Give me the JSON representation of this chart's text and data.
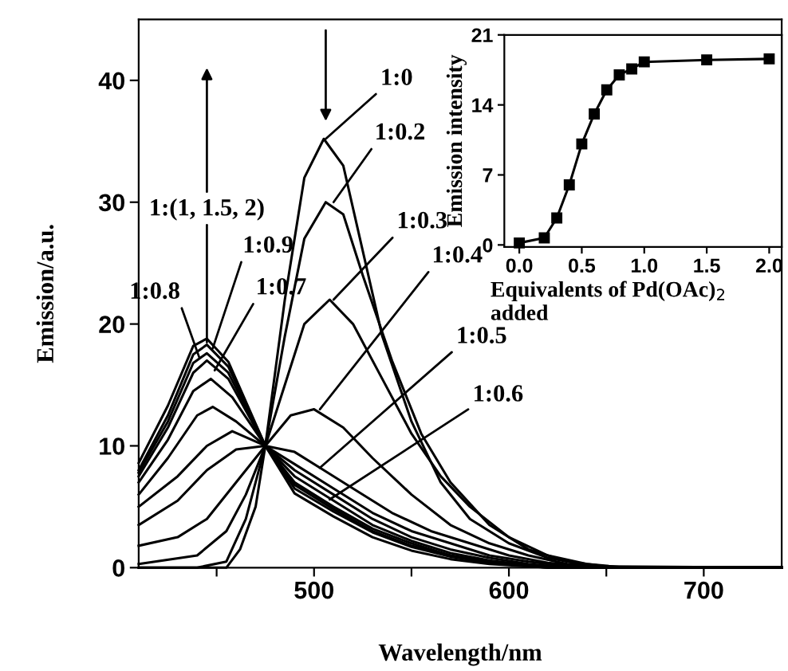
{
  "chart_data": [
    {
      "type": "line",
      "xlabel": "Wavelength/nm",
      "ylabel": "Emission/a.u.",
      "xlim": [
        410,
        740
      ],
      "ylim": [
        0,
        45
      ],
      "xticks": [
        {
          "value": 450,
          "label": null
        },
        500,
        {
          "value": 550,
          "label": null
        },
        600,
        {
          "value": 650,
          "label": null
        },
        700
      ],
      "yticks": [
        0,
        10,
        20,
        30,
        40
      ],
      "series": [
        {
          "color": "#000000",
          "x": [
            410,
            440,
            455,
            462,
            470,
            475,
            485,
            495,
            505,
            515,
            525,
            535,
            550,
            565,
            580,
            600,
            620,
            640,
            660,
            740
          ],
          "values": [
            0,
            0,
            0,
            1.5,
            5,
            10,
            22,
            32,
            35.2,
            33,
            26,
            19,
            12,
            7,
            4,
            2,
            0.8,
            0.2,
            0,
            0
          ]
        },
        {
          "color": "#000000",
          "x": [
            410,
            440,
            455,
            465,
            475,
            485,
            495,
            506,
            515,
            525,
            540,
            555,
            570,
            590,
            610,
            630,
            650,
            740
          ],
          "values": [
            0,
            0,
            0.5,
            4,
            10,
            19,
            27,
            30,
            29,
            24,
            17,
            11,
            7,
            3.5,
            1.5,
            0.5,
            0.1,
            0
          ]
        },
        {
          "color": "#000000",
          "x": [
            410,
            440,
            455,
            465,
            475,
            485,
            495,
            508,
            520,
            535,
            550,
            565,
            580,
            600,
            620,
            640,
            660,
            740
          ],
          "values": [
            0.3,
            1,
            3,
            6,
            10,
            15,
            20,
            22,
            20,
            15.5,
            11,
            7.5,
            5,
            2.5,
            1,
            0.3,
            0,
            0
          ]
        },
        {
          "color": "#000000",
          "x": [
            410,
            430,
            445,
            460,
            475,
            488,
            500,
            515,
            530,
            550,
            570,
            590,
            610,
            630,
            650,
            740
          ],
          "values": [
            1.8,
            2.5,
            4,
            7,
            10,
            12.5,
            13,
            11.5,
            9,
            6,
            3.5,
            2,
            1,
            0.3,
            0,
            0
          ]
        },
        {
          "color": "#000000",
          "x": [
            410,
            430,
            445,
            460,
            475,
            490,
            505,
            520,
            540,
            560,
            580,
            600,
            620,
            640,
            660,
            740
          ],
          "values": [
            3.5,
            5.5,
            8,
            9.7,
            10,
            9.5,
            8,
            6.5,
            4.5,
            3,
            2,
            1,
            0.4,
            0.1,
            0,
            0
          ]
        },
        {
          "color": "#000000",
          "x": [
            410,
            430,
            445,
            458,
            475,
            490,
            510,
            530,
            550,
            570,
            590,
            610,
            630,
            650,
            740
          ],
          "values": [
            5,
            7.5,
            10,
            11.2,
            10,
            8.5,
            6.5,
            4.5,
            3,
            2,
            1,
            0.5,
            0.1,
            0,
            0
          ]
        },
        {
          "color": "#000000",
          "x": [
            410,
            425,
            440,
            448,
            460,
            475,
            490,
            510,
            530,
            550,
            570,
            590,
            610,
            630,
            740
          ],
          "values": [
            6,
            9,
            12.5,
            13.2,
            12,
            10,
            8,
            6,
            4,
            2.5,
            1.5,
            0.8,
            0.3,
            0,
            0
          ]
        },
        {
          "color": "#000000",
          "x": [
            410,
            425,
            438,
            447,
            458,
            475,
            490,
            510,
            530,
            550,
            570,
            590,
            610,
            630,
            740
          ],
          "values": [
            7,
            10.5,
            14.5,
            15.5,
            14,
            10,
            7.5,
            5.5,
            3.5,
            2.2,
            1.2,
            0.6,
            0.2,
            0,
            0
          ]
        },
        {
          "color": "#000000",
          "x": [
            410,
            425,
            438,
            445,
            456,
            475,
            490,
            510,
            530,
            550,
            570,
            590,
            610,
            630,
            740
          ],
          "values": [
            7.5,
            11.5,
            16,
            17,
            15.5,
            10,
            7,
            5,
            3.2,
            2,
            1,
            0.5,
            0.2,
            0,
            0
          ]
        },
        {
          "color": "#000000",
          "x": [
            410,
            425,
            438,
            445,
            456,
            475,
            490,
            510,
            530,
            550,
            570,
            590,
            620,
            740
          ],
          "values": [
            7.8,
            12,
            16.8,
            17.6,
            16,
            10,
            6.8,
            4.8,
            3,
            1.8,
            1,
            0.4,
            0,
            0
          ]
        },
        {
          "color": "#000000",
          "x": [
            410,
            425,
            438,
            445,
            456,
            475,
            490,
            510,
            530,
            550,
            570,
            590,
            620,
            740
          ],
          "values": [
            8,
            12.5,
            17.5,
            18.3,
            16.5,
            10,
            6.5,
            4.6,
            2.9,
            1.7,
            0.9,
            0.4,
            0,
            0
          ]
        },
        {
          "color": "#000000",
          "x": [
            410,
            425,
            438,
            445,
            456,
            475,
            490,
            510,
            530,
            550,
            570,
            590,
            620,
            740
          ],
          "values": [
            8.6,
            13.3,
            18.2,
            18.8,
            16.9,
            10,
            6.1,
            4.2,
            2.5,
            1.4,
            0.7,
            0.3,
            0,
            0
          ]
        }
      ],
      "annotations": [
        {
          "text": "1:0",
          "x": 506,
          "y": 35.2
        },
        {
          "text": "1:0.2",
          "x": 510,
          "y": 30
        },
        {
          "text": "1:0.3",
          "x": 510,
          "y": 22
        },
        {
          "text": "1:0.4",
          "x": 503,
          "y": 13
        },
        {
          "text": "1:0.5",
          "x": 503,
          "y": 8.2
        },
        {
          "text": "1:0.6",
          "x": 508,
          "y": 5.6
        },
        {
          "text": "1:(1, 1.5, 2)",
          "x": 445,
          "y": 18.5
        },
        {
          "text": "1:0.9",
          "x": 448,
          "y": 18
        },
        {
          "text": "1:0.8",
          "x": 441,
          "y": 17.3
        },
        {
          "text": "1:0.7",
          "x": 449,
          "y": 16.2
        }
      ]
    },
    {
      "type": "line",
      "xlabel": "Equivalents of Pd(OAc)$_{2}$\nadded",
      "ylabel": "Emission intensity",
      "xlim": [
        -0.12,
        2.1
      ],
      "ylim": [
        -0.2,
        21
      ],
      "xticks": [
        {
          "value": 0,
          "label": "0.0"
        },
        0.5,
        {
          "value": 1,
          "label": "1.0"
        },
        1.5,
        {
          "value": 2,
          "label": "2.0"
        }
      ],
      "yticks": [
        0,
        7,
        14,
        21
      ],
      "marker": "square",
      "series": [
        {
          "color": "#000000",
          "x": [
            0,
            0.2,
            0.3,
            0.4,
            0.5,
            0.6,
            0.7,
            0.8,
            0.9,
            1.0,
            1.5,
            2.0
          ],
          "values": [
            0.2,
            0.7,
            2.7,
            6.0,
            10.1,
            13.1,
            15.5,
            17.0,
            17.6,
            18.3,
            18.5,
            18.6
          ]
        }
      ]
    }
  ]
}
